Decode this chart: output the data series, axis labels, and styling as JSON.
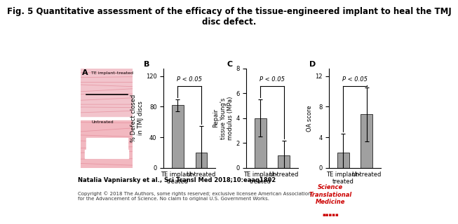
{
  "title": "Fig. 5 Quantitative assessment of the efficacy of the tissue-engineered implant to heal the TMJ\ndisc defect.",
  "title_fontsize": 8.5,
  "bar_color": "#a0a0a0",
  "bar_width": 0.5,
  "panels": {
    "B": {
      "label": "B",
      "categories": [
        "TE implant–\ntreated",
        "Untreated"
      ],
      "values": [
        82,
        20
      ],
      "errors": [
        8,
        35
      ],
      "ylabel": "% Defect closed\nin TMJ discs",
      "ylim": [
        0,
        130
      ],
      "yticks": [
        0,
        40,
        80,
        120
      ],
      "pvalue": "P < 0.05"
    },
    "C": {
      "label": "C",
      "categories": [
        "TE implant–\ntreated",
        "Untreated"
      ],
      "values": [
        4.0,
        1.0
      ],
      "errors": [
        1.5,
        1.2
      ],
      "ylabel": "Repair\ntissue Young's\nmodulus (MPa)",
      "ylim": [
        0,
        8
      ],
      "yticks": [
        0,
        2,
        4,
        6,
        8
      ],
      "pvalue": "P < 0.05"
    },
    "D": {
      "label": "D",
      "categories": [
        "TE implant–\ntreated",
        "Untreated"
      ],
      "values": [
        2.0,
        7.0
      ],
      "errors": [
        2.5,
        3.5
      ],
      "ylabel": "OA score",
      "ylim": [
        0,
        13
      ],
      "yticks": [
        0,
        4,
        8,
        12
      ],
      "pvalue": "P < 0.05"
    }
  },
  "footer_text": "Natalia Vapniarsky et al., Sci Transl Med 2018;10:eaaq1802",
  "copyright_text": "Copyright © 2018 The Authors, some rights reserved; exclusive licensee American Association\nfor the Advancement of Science. No claim to original U.S. Government Works.",
  "bg_color": "#ffffff",
  "axis_color": "#000000",
  "text_color": "#000000",
  "panel_label_fontsize": 8,
  "tick_fontsize": 6,
  "ylabel_fontsize": 6,
  "xticklabel_fontsize": 6,
  "pvalue_fontsize": 6,
  "footer_fontsize": 6,
  "copyright_fontsize": 5
}
